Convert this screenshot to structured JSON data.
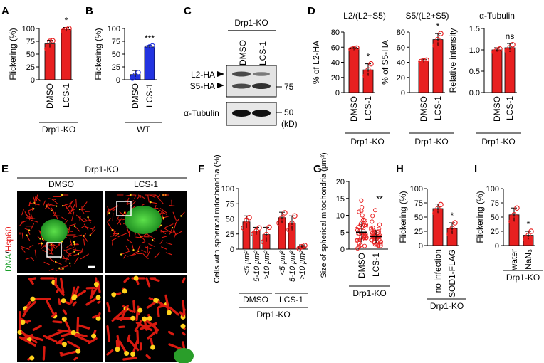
{
  "colors": {
    "red": "#e82020",
    "blue": "#2233e0",
    "green": "#1a9e2a",
    "dark": "#000000"
  },
  "panels": {
    "A": {
      "letter": "A",
      "ylabel": "Flickering (%)",
      "yticks": [
        "0",
        "25",
        "50",
        "75",
        "100"
      ],
      "ylim": [
        0,
        100
      ],
      "categories": [
        "DMSO",
        "LCS-1"
      ],
      "values": [
        70,
        98
      ],
      "errors": [
        7,
        4
      ],
      "dots": [
        [
          60,
          75,
          76
        ],
        [
          95,
          98,
          100
        ]
      ],
      "sig": "*",
      "group": "Drp1-KO"
    },
    "B": {
      "letter": "B",
      "ylabel": "Flickering (%)",
      "yticks": [
        "0",
        "25",
        "50",
        "75",
        "100"
      ],
      "ylim": [
        0,
        100
      ],
      "categories": [
        "DMSO",
        "LCS-1"
      ],
      "values": [
        10,
        64
      ],
      "errors": [
        8,
        3
      ],
      "dots": [
        [
          3,
          9,
          14
        ],
        [
          62,
          64,
          66
        ]
      ],
      "sig": "***",
      "group": "WT"
    },
    "C": {
      "letter": "C",
      "header": "Drp1-KO",
      "lanes": [
        "DMSO",
        "LCS-1"
      ],
      "band_l2": "L2-HA",
      "band_s5": "S5-HA",
      "marker_75": "75",
      "tubulin": "α-Tubulin",
      "marker_50": "50",
      "unit": "(kD)"
    },
    "D": {
      "letter": "D",
      "group": "Drp1-KO",
      "subpanels": [
        {
          "title": "L2/(L2+S5)",
          "ylabel": "% of L2-HA",
          "yticks": [
            "0",
            "20",
            "40",
            "60",
            "80"
          ],
          "ylim": [
            0,
            80
          ],
          "categories": [
            "DMSO",
            "LCS-1"
          ],
          "values": [
            58,
            30
          ],
          "errors": [
            2,
            8
          ],
          "dots": [
            [
              57,
              58,
              59
            ],
            [
              22,
              30,
              38
            ]
          ],
          "sig": "*"
        },
        {
          "title": "S5/(L2+S5)",
          "ylabel": "% of S5-HA",
          "yticks": [
            "0",
            "20",
            "40",
            "60",
            "80"
          ],
          "ylim": [
            0,
            80
          ],
          "categories": [
            "DMSO",
            "LCS-1"
          ],
          "values": [
            42,
            70
          ],
          "errors": [
            2,
            8
          ],
          "dots": [
            [
              41,
              42,
              43
            ],
            [
              62,
              70,
              78
            ]
          ],
          "sig": "*"
        },
        {
          "title": "α-Tubulin",
          "ylabel": "Relative intensity",
          "yticks": [
            "0.0",
            "0.5",
            "1.0",
            "1.5"
          ],
          "ylim": [
            0,
            1.5
          ],
          "categories": [
            "DMSO",
            "LCS-1"
          ],
          "values": [
            1.0,
            1.05
          ],
          "errors": [
            0.05,
            0.1
          ],
          "dots": [
            [
              0.95,
              1.0,
              1.02
            ],
            [
              0.98,
              1.05,
              1.12
            ]
          ],
          "sig": "ns"
        }
      ]
    },
    "E": {
      "letter": "E",
      "header": "Drp1-KO",
      "conditions": [
        "DMSO",
        "LCS-1"
      ],
      "stain_dna": "DNA",
      "stain_slash": "/",
      "stain_hsp": "Hsp60"
    },
    "F": {
      "letter": "F",
      "ylabel": "Cells with spherical mitochondria (%)",
      "yticks": [
        "0",
        "25",
        "50",
        "75",
        "100"
      ],
      "ylim": [
        0,
        100
      ],
      "categories": [
        "<5 μm²",
        "5-10 μm²",
        ">10 μm²",
        "<5 μm²",
        "5-10 μm²",
        ">10 μm²"
      ],
      "values": [
        45,
        30,
        24,
        52,
        43,
        4
      ],
      "errors": [
        10,
        6,
        12,
        9,
        12,
        3
      ],
      "dots": [
        [
          35,
          48,
          52
        ],
        [
          25,
          30,
          35
        ],
        [
          12,
          24,
          36
        ],
        [
          43,
          52,
          60
        ],
        [
          32,
          43,
          55
        ],
        [
          1,
          4,
          6
        ]
      ],
      "groups": [
        "DMSO",
        "LCS-1"
      ],
      "group": "Drp1-KO"
    },
    "G": {
      "letter": "G",
      "ylabel": "Size of spherical mitochondria (μm²)",
      "yticks": [
        "0",
        "5",
        "10",
        "15",
        "20"
      ],
      "ylim": [
        0,
        20
      ],
      "categories": [
        "DMSO",
        "LCS-1"
      ],
      "values": [
        5.0,
        3.7
      ],
      "errors": [
        3.0,
        2.0
      ],
      "sig": "**",
      "group": "Drp1-KO"
    },
    "H": {
      "letter": "H",
      "ylabel": "Flickering (%)",
      "yticks": [
        "0",
        "25",
        "50",
        "75",
        "100"
      ],
      "ylim": [
        0,
        100
      ],
      "categories": [
        "no infection",
        "SOD1-FLAG"
      ],
      "values": [
        65,
        30
      ],
      "errors": [
        8,
        10
      ],
      "dots": [
        [
          57,
          65,
          72
        ],
        [
          20,
          30,
          40
        ]
      ],
      "sig": "*",
      "group": "Drp1-KO"
    },
    "I": {
      "letter": "I",
      "ylabel": "Flickering (%)",
      "yticks": [
        "0",
        "25",
        "50",
        "75",
        "100"
      ],
      "ylim": [
        0,
        100
      ],
      "categories": [
        "water",
        "NaN₃"
      ],
      "values": [
        54,
        18
      ],
      "errors": [
        12,
        7
      ],
      "dots": [
        [
          42,
          54,
          66
        ],
        [
          11,
          18,
          25
        ]
      ],
      "sig": "*",
      "group": "Drp1-KO"
    }
  }
}
